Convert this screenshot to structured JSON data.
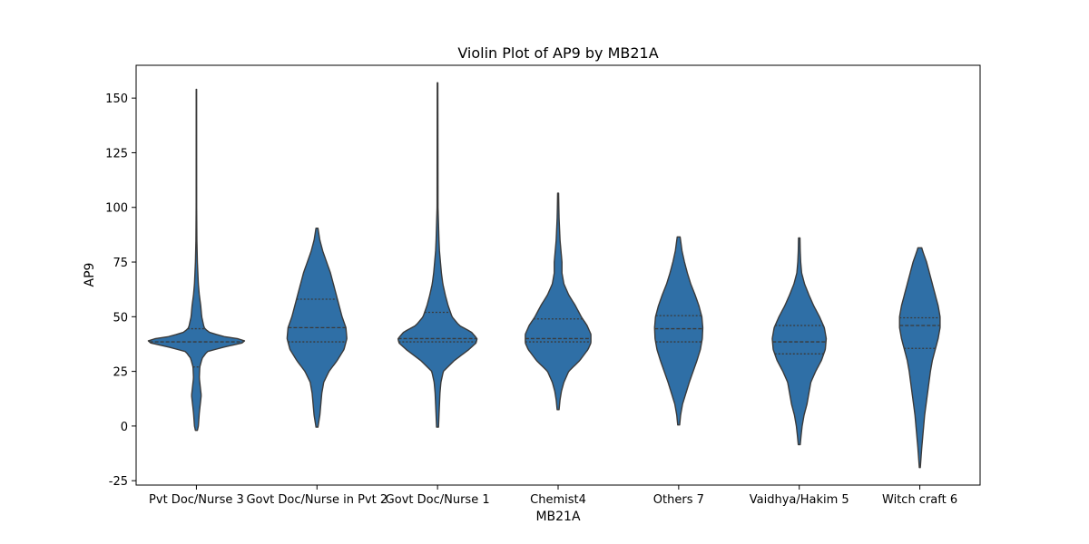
{
  "chart_data": {
    "type": "violin",
    "title": "Violin Plot of AP9 by MB21A",
    "xlabel": "MB21A",
    "ylabel": "AP9",
    "ylim": [
      -27,
      165
    ],
    "yticks": [
      -25,
      0,
      25,
      50,
      75,
      100,
      125,
      150
    ],
    "grid": false,
    "legend": "none",
    "fill_color": "#2f6fa6",
    "stroke_color": "#3a3a3a",
    "categories": [
      {
        "label": "Pvt Doc/Nurse 3",
        "min": -2,
        "max": 154,
        "q1": 27,
        "median": 38.5,
        "q3": 44.5,
        "profile": [
          [
            -2,
            0.02
          ],
          [
            0,
            0.04
          ],
          [
            3,
            0.05
          ],
          [
            6,
            0.06
          ],
          [
            10,
            0.08
          ],
          [
            14,
            0.1
          ],
          [
            18,
            0.08
          ],
          [
            22,
            0.06
          ],
          [
            27,
            0.07
          ],
          [
            31,
            0.12
          ],
          [
            34,
            0.22
          ],
          [
            36,
            0.55
          ],
          [
            38,
            0.95
          ],
          [
            39,
            1.0
          ],
          [
            40,
            0.85
          ],
          [
            41,
            0.55
          ],
          [
            43,
            0.25
          ],
          [
            45,
            0.16
          ],
          [
            50,
            0.11
          ],
          [
            55,
            0.09
          ],
          [
            60,
            0.06
          ],
          [
            65,
            0.04
          ],
          [
            70,
            0.03
          ],
          [
            75,
            0.02
          ],
          [
            80,
            0.015
          ],
          [
            85,
            0.01
          ],
          [
            100,
            0.005
          ],
          [
            154,
            0.004
          ]
        ]
      },
      {
        "label": "Govt Doc/Nurse in Pvt 2",
        "min": -0.5,
        "max": 90.5,
        "q1": 38.5,
        "median": 45,
        "q3": 58,
        "profile": [
          [
            -0.5,
            0.02
          ],
          [
            5,
            0.06
          ],
          [
            10,
            0.08
          ],
          [
            15,
            0.1
          ],
          [
            20,
            0.14
          ],
          [
            25,
            0.25
          ],
          [
            30,
            0.42
          ],
          [
            35,
            0.56
          ],
          [
            40,
            0.62
          ],
          [
            45,
            0.6
          ],
          [
            50,
            0.52
          ],
          [
            55,
            0.46
          ],
          [
            60,
            0.4
          ],
          [
            65,
            0.34
          ],
          [
            70,
            0.28
          ],
          [
            75,
            0.2
          ],
          [
            80,
            0.12
          ],
          [
            85,
            0.06
          ],
          [
            90.5,
            0.02
          ]
        ]
      },
      {
        "label": "Govt Doc/Nurse 1",
        "min": -0.5,
        "max": 157,
        "q1": 38.5,
        "median": 40,
        "q3": 52,
        "profile": [
          [
            -0.5,
            0.02
          ],
          [
            5,
            0.03
          ],
          [
            10,
            0.04
          ],
          [
            15,
            0.05
          ],
          [
            20,
            0.07
          ],
          [
            25,
            0.12
          ],
          [
            30,
            0.35
          ],
          [
            35,
            0.65
          ],
          [
            38,
            0.8
          ],
          [
            40,
            0.82
          ],
          [
            43,
            0.7
          ],
          [
            46,
            0.45
          ],
          [
            50,
            0.3
          ],
          [
            55,
            0.22
          ],
          [
            60,
            0.16
          ],
          [
            65,
            0.11
          ],
          [
            70,
            0.08
          ],
          [
            75,
            0.06
          ],
          [
            80,
            0.04
          ],
          [
            85,
            0.03
          ],
          [
            100,
            0.01
          ],
          [
            157,
            0.006
          ]
        ]
      },
      {
        "label": "Chemist4",
        "min": 7.5,
        "max": 106.5,
        "q1": 38.5,
        "median": 40,
        "q3": 49,
        "profile": [
          [
            7.5,
            0.02
          ],
          [
            12,
            0.04
          ],
          [
            16,
            0.07
          ],
          [
            20,
            0.12
          ],
          [
            25,
            0.22
          ],
          [
            30,
            0.45
          ],
          [
            35,
            0.62
          ],
          [
            38,
            0.68
          ],
          [
            42,
            0.68
          ],
          [
            46,
            0.6
          ],
          [
            50,
            0.48
          ],
          [
            55,
            0.36
          ],
          [
            60,
            0.22
          ],
          [
            65,
            0.12
          ],
          [
            70,
            0.08
          ],
          [
            75,
            0.08
          ],
          [
            80,
            0.06
          ],
          [
            85,
            0.04
          ],
          [
            90,
            0.03
          ],
          [
            95,
            0.02
          ],
          [
            100,
            0.015
          ],
          [
            106.5,
            0.01
          ]
        ]
      },
      {
        "label": "Others 7",
        "min": 0.5,
        "max": 86.5,
        "q1": 38.5,
        "median": 44.5,
        "q3": 50.5,
        "profile": [
          [
            0.5,
            0.02
          ],
          [
            5,
            0.04
          ],
          [
            10,
            0.08
          ],
          [
            15,
            0.15
          ],
          [
            20,
            0.22
          ],
          [
            25,
            0.3
          ],
          [
            30,
            0.38
          ],
          [
            35,
            0.45
          ],
          [
            40,
            0.49
          ],
          [
            45,
            0.5
          ],
          [
            50,
            0.48
          ],
          [
            55,
            0.42
          ],
          [
            60,
            0.34
          ],
          [
            65,
            0.25
          ],
          [
            70,
            0.18
          ],
          [
            75,
            0.12
          ],
          [
            80,
            0.07
          ],
          [
            86.5,
            0.03
          ]
        ]
      },
      {
        "label": "Vaidhya/Hakim 5",
        "min": -8.5,
        "max": 86,
        "q1": 33,
        "median": 38.5,
        "q3": 46,
        "profile": [
          [
            -8.5,
            0.02
          ],
          [
            -4,
            0.04
          ],
          [
            0,
            0.06
          ],
          [
            5,
            0.1
          ],
          [
            10,
            0.16
          ],
          [
            15,
            0.2
          ],
          [
            20,
            0.24
          ],
          [
            25,
            0.34
          ],
          [
            30,
            0.46
          ],
          [
            35,
            0.54
          ],
          [
            40,
            0.56
          ],
          [
            45,
            0.52
          ],
          [
            50,
            0.42
          ],
          [
            55,
            0.3
          ],
          [
            60,
            0.2
          ],
          [
            65,
            0.11
          ],
          [
            70,
            0.05
          ],
          [
            75,
            0.03
          ],
          [
            80,
            0.02
          ],
          [
            86,
            0.015
          ]
        ]
      },
      {
        "label": "Witch craft 6",
        "min": -19,
        "max": 81.5,
        "q1": 35.5,
        "median": 46,
        "q3": 49.5,
        "profile": [
          [
            -19,
            0.01
          ],
          [
            -10,
            0.04
          ],
          [
            -5,
            0.06
          ],
          [
            0,
            0.08
          ],
          [
            5,
            0.1
          ],
          [
            10,
            0.13
          ],
          [
            15,
            0.16
          ],
          [
            20,
            0.19
          ],
          [
            25,
            0.22
          ],
          [
            30,
            0.26
          ],
          [
            35,
            0.32
          ],
          [
            40,
            0.38
          ],
          [
            45,
            0.42
          ],
          [
            50,
            0.42
          ],
          [
            55,
            0.38
          ],
          [
            60,
            0.32
          ],
          [
            65,
            0.26
          ],
          [
            70,
            0.2
          ],
          [
            75,
            0.14
          ],
          [
            80,
            0.06
          ],
          [
            81.5,
            0.04
          ]
        ]
      }
    ]
  }
}
